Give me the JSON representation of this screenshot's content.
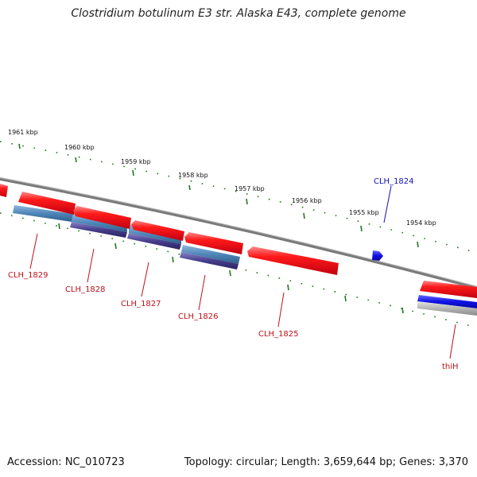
{
  "title": "Clostridium botulinum E3 str. Alaska E43, complete genome",
  "footer": {
    "accession": "Accession: NC_010723",
    "topology": "Topology: circular; Length: 3,659,644 bp; Genes: 3,370"
  },
  "colors": {
    "backbone": "#7a7a7a",
    "cds": "#e8101a",
    "gene_steel": "#4f86b8",
    "gene_indigo": "#463d8c",
    "gene_blue": "#1010e6",
    "gene_grey": "#b4b4b4",
    "tick": "#1e7a1e",
    "label_red": "#c0101a",
    "label_blue": "#1010b0"
  },
  "tick_labels": [
    "1961 kbp",
    "1960 kbp",
    "1959 kbp",
    "1958 kbp",
    "1957 kbp",
    "1956 kbp",
    "1955 kbp",
    "1954 kbp"
  ],
  "gene_labels": [
    "CLH_1829",
    "CLH_1828",
    "CLH_1827",
    "CLH_1826",
    "CLH_1825",
    "CLH_1824",
    "thiH"
  ]
}
